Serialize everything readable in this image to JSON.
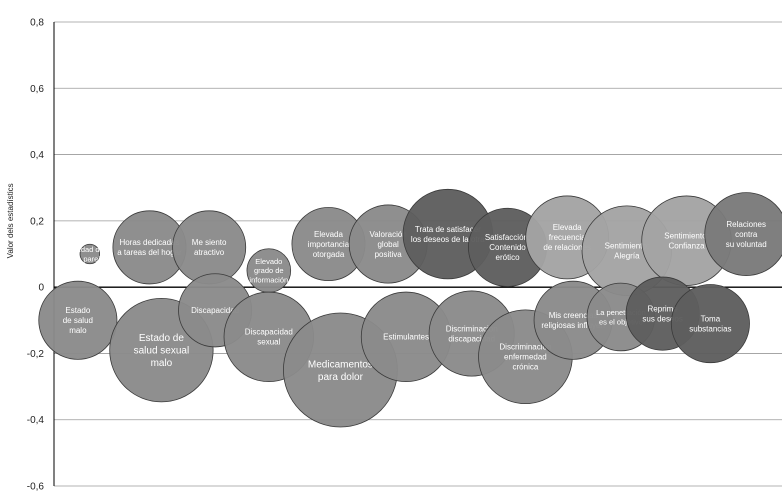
{
  "chart_data": {
    "type": "scatter",
    "title": "",
    "xlabel": "",
    "ylabel": "Valor dels estadístics",
    "ylim": [
      -0.6,
      0.8
    ],
    "yticks": [
      0.8,
      0.6,
      0.4,
      0.2,
      0,
      -0.2,
      -0.4,
      -0.6
    ],
    "ytick_labels": [
      "0,8",
      "0,6",
      "0,4",
      "0,2",
      "0",
      "-0,2",
      "-0,4",
      "-0,6"
    ],
    "grid": true,
    "bubbles": [
      {
        "label": "Edad de la pareja",
        "lines": [
          "Edad de",
          "la pareja"
        ],
        "x": 1,
        "y": 0.1,
        "size": 1,
        "color": "#8a8a8a"
      },
      {
        "label": "Horas dedicadas a tareas del hogar",
        "lines": [
          "Horas dedicadas",
          "a tareas del hogar"
        ],
        "x": 2,
        "y": 0.12,
        "size": 14,
        "color": "#8a8a8a"
      },
      {
        "label": "Me siento atractivo",
        "lines": [
          "Me siento",
          "atractivo"
        ],
        "x": 3,
        "y": 0.12,
        "size": 14,
        "color": "#8a8a8a"
      },
      {
        "label": "Elevado grado de información",
        "lines": [
          "Elevado",
          "grado de",
          "información"
        ],
        "x": 4,
        "y": 0.05,
        "size": 5,
        "color": "#8a8a8a"
      },
      {
        "label": "Elevada importancia otorgada",
        "lines": [
          "Elevada",
          "importancia",
          "otorgada"
        ],
        "x": 5,
        "y": 0.13,
        "size": 14,
        "color": "#8a8a8a"
      },
      {
        "label": "Valoración global positiva",
        "lines": [
          "Valoración",
          "global",
          "positiva"
        ],
        "x": 6,
        "y": 0.13,
        "size": 16,
        "color": "#8a8a8a"
      },
      {
        "label": "Trata de satisfacer los deseos de la otra",
        "lines": [
          "Trata de satisfacer",
          "los deseos de la otra"
        ],
        "x": 7,
        "y": 0.16,
        "size": 21,
        "color": "#5e5e5e"
      },
      {
        "label": "Satisfacción: Contenido erótico",
        "lines": [
          "Satisfacción:",
          "Contenido",
          "erótico"
        ],
        "x": 8,
        "y": 0.12,
        "size": 16,
        "color": "#5e5e5e"
      },
      {
        "label": "Elevada frecuencia de relaciones",
        "lines": [
          "Elevada",
          "frecuencia",
          "de relaciones"
        ],
        "x": 9,
        "y": 0.15,
        "size": 18,
        "color": "#a3a3a3"
      },
      {
        "label": "Sentimiento: Alegría",
        "lines": [
          "Sentimiento:",
          "Alegría"
        ],
        "x": 10,
        "y": 0.11,
        "size": 21,
        "color": "#a3a3a3"
      },
      {
        "label": "Sentimiento: Confianza",
        "lines": [
          "Sentimiento:",
          "Confianza"
        ],
        "x": 11,
        "y": 0.14,
        "size": 21,
        "color": "#a3a3a3"
      },
      {
        "label": "Relaciones contra su voluntad",
        "lines": [
          "Relaciones",
          "contra",
          "su voluntad"
        ],
        "x": 12,
        "y": 0.16,
        "size": 18,
        "color": "#7a7a7a"
      },
      {
        "label": "Estado de salud malo",
        "lines": [
          "Estado",
          "de salud",
          "malo"
        ],
        "x": 0.8,
        "y": -0.1,
        "size": 16,
        "color": "#8a8a8a"
      },
      {
        "label": "Estado de salud sexual malo",
        "lines": [
          "Estado de",
          "salud sexual",
          "malo"
        ],
        "x": 2.2,
        "y": -0.19,
        "size": 28,
        "color": "#8a8a8a"
      },
      {
        "label": "Discapacidad",
        "lines": [
          "Discapacidad"
        ],
        "x": 3.1,
        "y": -0.07,
        "size": 14,
        "color": "#8a8a8a"
      },
      {
        "label": "Discapacidad sexual",
        "lines": [
          "Discapacidad",
          "sexual"
        ],
        "x": 4,
        "y": -0.15,
        "size": 21,
        "color": "#8a8a8a"
      },
      {
        "label": "Medicamentos para dolor",
        "lines": [
          "Medicamentos",
          "para dolor"
        ],
        "x": 5.2,
        "y": -0.25,
        "size": 34,
        "color": "#8a8a8a"
      },
      {
        "label": "Estimulantes",
        "lines": [
          "Estimulantes"
        ],
        "x": 6.3,
        "y": -0.15,
        "size": 21,
        "color": "#8a8a8a"
      },
      {
        "label": "Discriminación discapacidad",
        "lines": [
          "Discriminación",
          "discapacidad"
        ],
        "x": 7.4,
        "y": -0.14,
        "size": 19,
        "color": "#8a8a8a"
      },
      {
        "label": "Discriminación enfermedad crónica",
        "lines": [
          "Discriminación",
          "enfermedad",
          "crónica"
        ],
        "x": 8.3,
        "y": -0.21,
        "size": 23,
        "color": "#8a8a8a"
      },
      {
        "label": "Mis creencias religiosas influyen",
        "lines": [
          "Mis creencias",
          "religiosas influyen"
        ],
        "x": 9.1,
        "y": -0.1,
        "size": 16,
        "color": "#8a8a8a"
      },
      {
        "label": "La penetración es el objetivo",
        "lines": [
          "La penetración",
          "es el objetivo"
        ],
        "x": 9.9,
        "y": -0.09,
        "size": 12,
        "color": "#8a8a8a"
      },
      {
        "label": "Reprime sus deseos",
        "lines": [
          "Reprime",
          "sus deseos"
        ],
        "x": 10.6,
        "y": -0.08,
        "size": 14,
        "color": "#5e5e5e"
      },
      {
        "label": "Toma substancias",
        "lines": [
          "Toma",
          "substancias"
        ],
        "x": 11.4,
        "y": -0.11,
        "size": 16,
        "color": "#5e5e5e"
      }
    ]
  }
}
